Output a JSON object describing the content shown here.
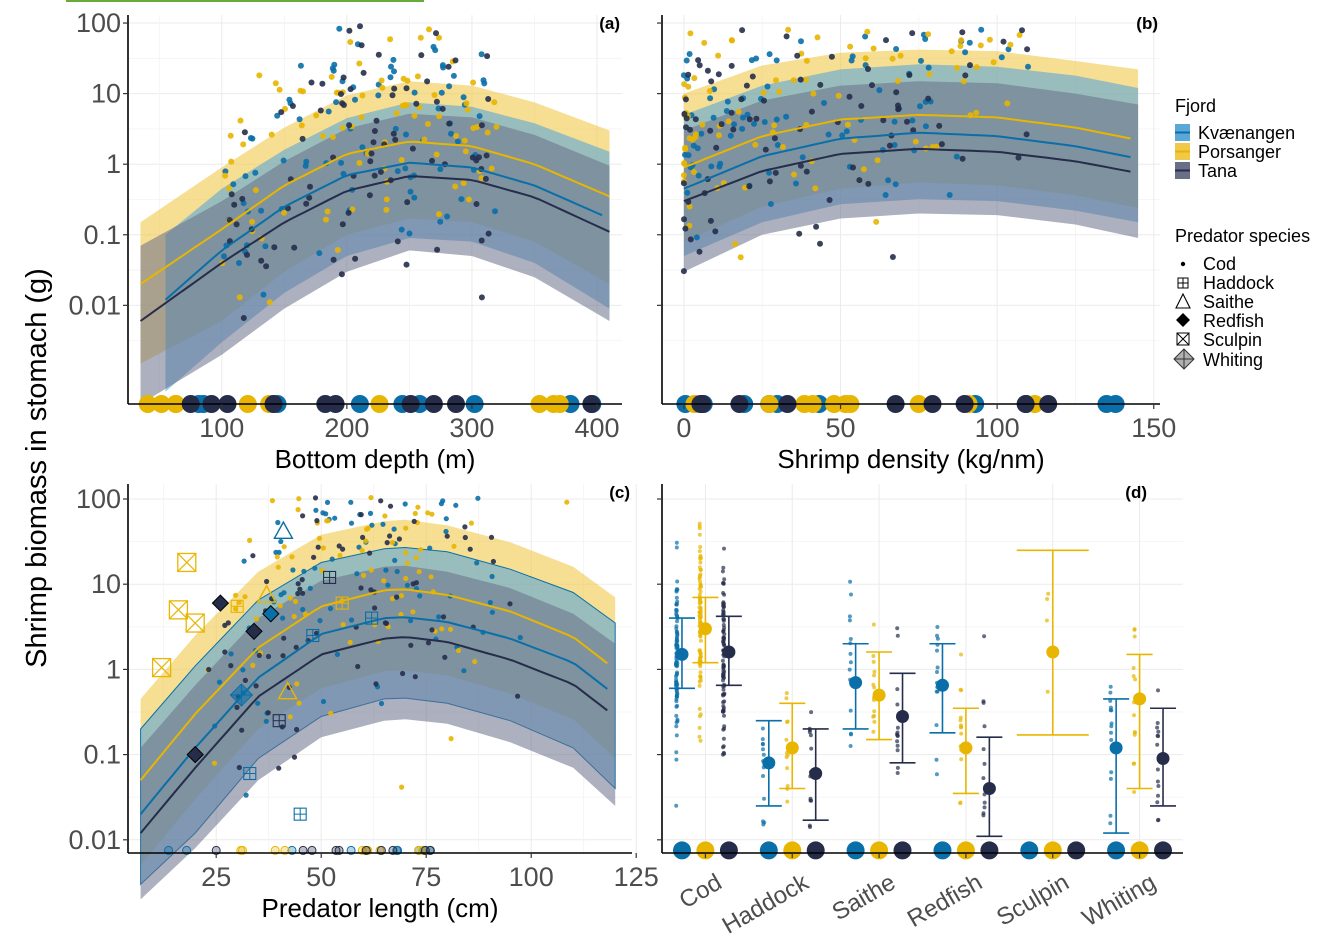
{
  "figure": {
    "shared_ylabel": "Shrimp biomass in stomach (g)",
    "legend": {
      "fjord_title": "Fjord",
      "fjords": [
        {
          "name": "Kvænangen",
          "color": "#0a6fa8",
          "ribbon": "#5aa7d8"
        },
        {
          "name": "Porsanger",
          "color": "#e8b500",
          "ribbon": "#f0c84a"
        },
        {
          "name": "Tana",
          "color": "#262d4a",
          "ribbon": "#6a6f88"
        }
      ],
      "species_title": "Predator species",
      "species": [
        {
          "name": "Cod",
          "symbol": "dot"
        },
        {
          "name": "Haddock",
          "symbol": "square-plus"
        },
        {
          "name": "Saithe",
          "symbol": "triangle"
        },
        {
          "name": "Redfish",
          "symbol": "diamond"
        },
        {
          "name": "Sculpin",
          "symbol": "square-x"
        },
        {
          "name": "Whiting",
          "symbol": "diamond-plus"
        }
      ]
    }
  },
  "chart_data": [
    {
      "id": "a",
      "panel_label": "(a)",
      "type": "line",
      "xlabel": "Bottom depth (m)",
      "xlim": [
        25,
        420
      ],
      "xticks": [
        100,
        200,
        300,
        400
      ],
      "yscale": "log",
      "ylim": [
        0.0004,
        130
      ],
      "yticks": [
        0.01,
        0.1,
        1,
        10,
        100
      ],
      "ytick_labels": [
        "0.01",
        "0.1",
        "1",
        "10",
        "100"
      ],
      "zero_marker_y": 0.0004,
      "grid": true,
      "series": [
        {
          "name": "Kvænangen",
          "x": [
            55,
            100,
            150,
            200,
            250,
            300,
            350,
            410
          ],
          "y": [
            0.012,
            0.06,
            0.25,
            0.7,
            1.05,
            0.9,
            0.5,
            0.17
          ],
          "lower": [
            0.0006,
            0.003,
            0.015,
            0.05,
            0.09,
            0.08,
            0.04,
            0.009
          ],
          "upper": [
            0.1,
            0.45,
            1.6,
            4.5,
            7.5,
            6.5,
            3.8,
            1.5
          ]
        },
        {
          "name": "Porsanger",
          "x": [
            35,
            100,
            150,
            200,
            250,
            300,
            350,
            410
          ],
          "y": [
            0.02,
            0.12,
            0.5,
            1.4,
            2.1,
            1.8,
            1.0,
            0.35
          ],
          "lower": [
            0.0015,
            0.006,
            0.03,
            0.1,
            0.17,
            0.15,
            0.08,
            0.02
          ],
          "upper": [
            0.15,
            0.9,
            3.3,
            9.5,
            15,
            13,
            7.5,
            3.0
          ]
        },
        {
          "name": "Tana",
          "x": [
            35,
            100,
            150,
            200,
            250,
            300,
            350,
            410
          ],
          "y": [
            0.006,
            0.04,
            0.15,
            0.42,
            0.68,
            0.6,
            0.34,
            0.11
          ],
          "lower": [
            0.0004,
            0.002,
            0.009,
            0.03,
            0.06,
            0.05,
            0.025,
            0.006
          ],
          "upper": [
            0.07,
            0.3,
            1.1,
            3.2,
            5.2,
            4.6,
            2.6,
            0.95
          ]
        }
      ]
    },
    {
      "id": "b",
      "panel_label": "(b)",
      "type": "line",
      "xlabel": "Shrimp density (kg/nm)",
      "xlim": [
        -7,
        152
      ],
      "xticks": [
        0,
        50,
        100,
        150
      ],
      "yscale": "log",
      "ylim": [
        0.0004,
        130
      ],
      "yticks": [
        0.01,
        0.1,
        1,
        10,
        100
      ],
      "ytick_labels": [],
      "zero_marker_y": 0.0004,
      "grid": true,
      "series": [
        {
          "name": "Kvænangen",
          "x": [
            0,
            25,
            50,
            75,
            100,
            125,
            145
          ],
          "y": [
            0.45,
            1.3,
            2.3,
            2.8,
            2.5,
            1.8,
            1.2
          ],
          "lower": [
            0.05,
            0.15,
            0.27,
            0.32,
            0.3,
            0.22,
            0.15
          ],
          "upper": [
            5,
            13,
            22,
            26,
            24,
            18,
            12
          ]
        },
        {
          "name": "Porsanger",
          "x": [
            0,
            25,
            50,
            75,
            100,
            125,
            145
          ],
          "y": [
            0.9,
            2.5,
            4.3,
            5.0,
            4.6,
            3.3,
            2.2
          ],
          "lower": [
            0.08,
            0.25,
            0.45,
            0.55,
            0.5,
            0.36,
            0.24
          ],
          "upper": [
            10,
            25,
            38,
            42,
            40,
            29,
            22
          ]
        },
        {
          "name": "Tana",
          "x": [
            0,
            25,
            50,
            75,
            100,
            125,
            145
          ],
          "y": [
            0.3,
            0.8,
            1.4,
            1.65,
            1.5,
            1.1,
            0.75
          ],
          "lower": [
            0.03,
            0.1,
            0.17,
            0.2,
            0.19,
            0.14,
            0.09
          ],
          "upper": [
            3,
            8,
            13,
            15,
            14,
            10,
            7
          ]
        }
      ]
    },
    {
      "id": "c",
      "panel_label": "(c)",
      "type": "line",
      "xlabel": "Predator length (cm)",
      "xlim": [
        4,
        124
      ],
      "xticks": [
        25,
        50,
        75,
        100,
        125
      ],
      "yscale": "log",
      "ylim": [
        0.007,
        150
      ],
      "yticks": [
        0.01,
        0.1,
        1,
        10,
        100
      ],
      "ytick_labels": [
        "0.01",
        "0.1",
        "1",
        "10",
        "100"
      ],
      "zero_marker_y": 0.0075,
      "grid": true,
      "series": [
        {
          "name": "Kvænangen",
          "x": [
            7,
            20,
            35,
            50,
            65,
            70,
            80,
            95,
            110,
            120
          ],
          "y": [
            0.02,
            0.12,
            0.8,
            2.6,
            4.0,
            4.1,
            3.6,
            2.3,
            1.2,
            0.5
          ],
          "lower": [
            0.003,
            0.012,
            0.09,
            0.28,
            0.45,
            0.46,
            0.4,
            0.25,
            0.12,
            0.04
          ],
          "upper": [
            0.2,
            1.1,
            6.5,
            18,
            26,
            27,
            24,
            15,
            8,
            3.5
          ]
        },
        {
          "name": "Porsanger",
          "x": [
            7,
            20,
            35,
            50,
            65,
            70,
            80,
            95,
            110,
            120
          ],
          "y": [
            0.05,
            0.3,
            1.8,
            5.5,
            8.5,
            8.7,
            7.5,
            4.8,
            2.4,
            1.0
          ],
          "lower": [
            0.005,
            0.03,
            0.2,
            0.6,
            0.95,
            0.97,
            0.85,
            0.52,
            0.26,
            0.09
          ],
          "upper": [
            0.45,
            2.5,
            14,
            38,
            55,
            57,
            49,
            31,
            16,
            7
          ]
        },
        {
          "name": "Tana",
          "x": [
            7,
            20,
            35,
            50,
            65,
            70,
            80,
            95,
            110,
            120
          ],
          "y": [
            0.012,
            0.07,
            0.48,
            1.5,
            2.3,
            2.4,
            2.1,
            1.3,
            0.67,
            0.28
          ],
          "lower": [
            0.002,
            0.008,
            0.05,
            0.16,
            0.25,
            0.26,
            0.23,
            0.14,
            0.07,
            0.025
          ],
          "upper": [
            0.12,
            0.65,
            4,
            11,
            16,
            16.5,
            14,
            9,
            4.5,
            2
          ]
        }
      ]
    },
    {
      "id": "d",
      "panel_label": "(d)",
      "type": "scatter",
      "xlabel": "",
      "categories": [
        "Cod",
        "Haddock",
        "Saithe",
        "Redfish",
        "Sculpin",
        "Whiting"
      ],
      "yscale": "log",
      "ylim": [
        0.007,
        150
      ],
      "yticks": [
        0.01,
        0.1,
        1,
        10,
        100
      ],
      "ytick_labels": [],
      "zero_marker_y": 0.0075,
      "grid": true,
      "series": [
        {
          "name": "Kvænangen",
          "estimate": [
            1.5,
            0.08,
            0.7,
            0.65,
            null,
            0.12
          ],
          "lower": [
            0.6,
            0.025,
            0.2,
            0.18,
            null,
            0.012
          ],
          "upper": [
            4.0,
            0.25,
            2.0,
            2.0,
            null,
            0.45
          ]
        },
        {
          "name": "Porsanger",
          "estimate": [
            3.0,
            0.12,
            0.5,
            0.12,
            1.6,
            0.45
          ],
          "lower": [
            1.2,
            0.04,
            0.15,
            0.035,
            0.17,
            0.04
          ],
          "upper": [
            7.0,
            0.4,
            1.6,
            0.35,
            25,
            1.5
          ]
        },
        {
          "name": "Tana",
          "estimate": [
            1.6,
            0.06,
            0.28,
            0.04,
            null,
            0.09
          ],
          "lower": [
            0.65,
            0.017,
            0.08,
            0.011,
            null,
            0.025
          ],
          "upper": [
            4.2,
            0.2,
            0.9,
            0.16,
            null,
            0.35
          ]
        }
      ]
    }
  ]
}
